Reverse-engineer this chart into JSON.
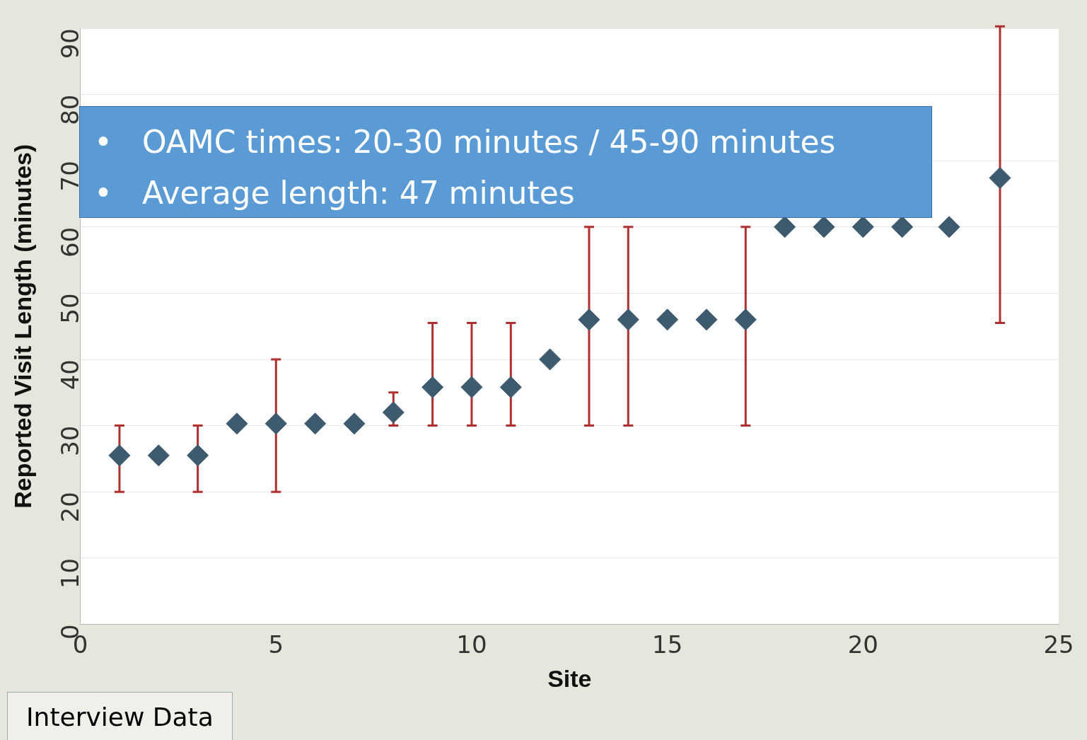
{
  "chart_data": {
    "type": "scatter",
    "xlabel": "Site",
    "ylabel": "Reported Visit Length (minutes)",
    "x": [
      1,
      2,
      3,
      4,
      5,
      6,
      7,
      8,
      9,
      10,
      11,
      12,
      13,
      14,
      15,
      16,
      17,
      18,
      19,
      20,
      21,
      22.2,
      23.5
    ],
    "series": [
      {
        "color": "#3d5a6e",
        "values": [
          25.5,
          25.5,
          25.5,
          30.3,
          30.3,
          30.3,
          30.3,
          32,
          35.8,
          35.8,
          35.8,
          40,
          46,
          46,
          46,
          46,
          46,
          60,
          60,
          60,
          60,
          60,
          67.4
        ],
        "errors": [
          [
            20,
            30
          ],
          null,
          [
            20,
            30
          ],
          null,
          [
            20,
            40
          ],
          null,
          null,
          [
            30,
            35
          ],
          [
            30,
            45.5
          ],
          [
            30,
            45.5
          ],
          [
            30,
            45.5
          ],
          null,
          [
            30,
            60
          ],
          [
            30,
            60
          ],
          null,
          null,
          [
            30,
            60
          ],
          null,
          null,
          null,
          null,
          null,
          [
            45.5,
            90.3
          ]
        ]
      }
    ],
    "xlim": [
      0,
      25
    ],
    "xticks": [
      0,
      5,
      10,
      15,
      20,
      25
    ],
    "ylim": [
      0,
      90
    ],
    "yticks": [
      0,
      10,
      20,
      30,
      40,
      50,
      60,
      70,
      80,
      90
    ],
    "grid": "y",
    "legend": false,
    "marker": "diamond",
    "annotations": [
      "•   OAMC times: 20-30 minutes / 45-90 minutes",
      "•   Average length: 47 minutes",
      "Interview Data"
    ]
  }
}
